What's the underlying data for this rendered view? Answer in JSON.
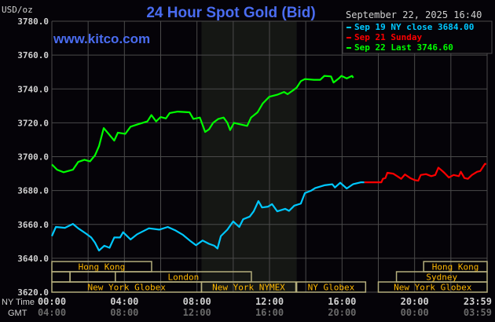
{
  "chart_data": {
    "type": "line",
    "title": "24 Hour Spot Gold (Bid)",
    "watermark": "www.kitco.com",
    "timestamp": "September 22, 2025 16:40",
    "ylabel": "USD/oz",
    "ylim": [
      3620,
      3780
    ],
    "yticks": [
      "3780.0",
      "3760.0",
      "3740.0",
      "3720.0",
      "3700.0",
      "3680.0",
      "3660.0",
      "3640.0",
      "3620.0"
    ],
    "ytick_values": [
      3780,
      3760,
      3740,
      3720,
      3700,
      3680,
      3660,
      3640,
      3620
    ],
    "xlim_hours": [
      0,
      24
    ],
    "grid": true,
    "x_row_labels": {
      "ny": "NY Time",
      "gmt": "GMT"
    },
    "xticks": [
      {
        "hour": 0,
        "ny": "00:00",
        "gmt": "04:00"
      },
      {
        "hour": 4,
        "ny": "04:00",
        "gmt": "08:00"
      },
      {
        "hour": 8,
        "ny": "08:00",
        "gmt": "12:00"
      },
      {
        "hour": 12,
        "ny": "12:00",
        "gmt": "16:00"
      },
      {
        "hour": 16,
        "ny": "16:00",
        "gmt": "20:00"
      },
      {
        "hour": 20,
        "ny": "20:00",
        "gmt": "00:00"
      },
      {
        "hour": 24,
        "ny": "23:59",
        "gmt": "03:59"
      }
    ],
    "shaded_region_hours": [
      8.25,
      13.5
    ],
    "legend_placement": "top-right",
    "series": [
      {
        "name": "Sep 19 NY close 3684.00",
        "color": "#00c8ff",
        "x": [
          0,
          0.22,
          0.72,
          1.16,
          1.45,
          1.88,
          2.17,
          2.38,
          2.6,
          2.89,
          3.18,
          3.44,
          3.76,
          3.93,
          4.34,
          4.7,
          5.35,
          5.92,
          6.39,
          6.79,
          7.23,
          7.66,
          7.95,
          8.31,
          8.67,
          8.96,
          9.13,
          9.32,
          9.68,
          10,
          10.33,
          10.55,
          10.91,
          11.13,
          11.39,
          11.59,
          11.92,
          12.14,
          12.43,
          12.86,
          13.08,
          13.37,
          13.73,
          13.95,
          14.31,
          14.52,
          15.03,
          15.46,
          15.61,
          15.9,
          16.26,
          16.62,
          17.05,
          17.23
        ],
        "y": [
          3653.1,
          3658.5,
          3658,
          3660.3,
          3657.7,
          3654.6,
          3652.3,
          3649.2,
          3644.6,
          3647.4,
          3646.2,
          3652.3,
          3652.3,
          3655.4,
          3651.1,
          3654.2,
          3657.7,
          3656.9,
          3658.5,
          3656.6,
          3653.8,
          3650,
          3647.7,
          3650.5,
          3648.5,
          3647.4,
          3645.8,
          3653.1,
          3656.9,
          3661.8,
          3658.5,
          3663.1,
          3664.6,
          3667.7,
          3673.8,
          3670,
          3670.5,
          3672,
          3667.7,
          3669.2,
          3668,
          3671.1,
          3672.3,
          3678.5,
          3680,
          3681.5,
          3683.1,
          3683.7,
          3681.8,
          3684.6,
          3681.2,
          3683.8,
          3684.9,
          3684.9
        ]
      },
      {
        "name": "Sep 21 Sunday",
        "color": "#ff0000",
        "x": [
          17.23,
          18.1,
          18.17,
          18.25,
          18.39,
          18.5,
          18.82,
          19.04,
          19.26,
          19.47,
          19.76,
          20,
          20.2,
          20.34,
          20.63,
          20.92,
          21.14,
          21.31,
          21.45,
          21.64,
          21.89,
          22.15,
          22.44,
          22.55,
          22.75,
          22.94,
          23.16,
          23.45,
          23.62,
          23.88,
          23.95
        ],
        "y": [
          3684.9,
          3684.9,
          3684.9,
          3686.9,
          3687.4,
          3690.5,
          3690,
          3688.5,
          3686.9,
          3689.5,
          3687.4,
          3686.2,
          3685.8,
          3689.2,
          3689.7,
          3688.5,
          3689.2,
          3693.5,
          3692.3,
          3690.5,
          3687.7,
          3689.2,
          3688.5,
          3691.1,
          3687.4,
          3686.9,
          3689.2,
          3691.1,
          3691.5,
          3695.8,
          3695.6
        ]
      },
      {
        "name": "Sep 22 Last 3746.60",
        "color": "#00ff00",
        "x": [
          0,
          0.29,
          0.65,
          1.16,
          1.45,
          1.8,
          2.1,
          2.38,
          2.6,
          2.86,
          3.1,
          3.44,
          3.64,
          4.05,
          4.34,
          4.77,
          5.27,
          5.49,
          5.75,
          6,
          6.29,
          6.5,
          6.94,
          7.59,
          7.8,
          8.16,
          8.45,
          8.67,
          8.89,
          9.18,
          9.47,
          9.68,
          9.83,
          10.04,
          10.33,
          10.77,
          10.98,
          11.34,
          11.63,
          11.99,
          12.43,
          12.8,
          13,
          13.3,
          13.5,
          13.73,
          13.95,
          14.45,
          14.8,
          15.03,
          15.39,
          15.53,
          15.82,
          15.97,
          16.26,
          16.55,
          16.62
        ],
        "y": [
          3695.4,
          3692.3,
          3690.8,
          3692.3,
          3696.9,
          3698.2,
          3697.2,
          3700.8,
          3706.2,
          3716.9,
          3713.8,
          3709.5,
          3714.2,
          3713.5,
          3717.7,
          3719.2,
          3720.8,
          3724.6,
          3720.8,
          3723.4,
          3722.6,
          3725.8,
          3726.6,
          3726.2,
          3722.3,
          3723.1,
          3714.6,
          3716.2,
          3720,
          3722.3,
          3723.1,
          3720,
          3715.7,
          3720,
          3719.2,
          3718.2,
          3723.1,
          3726.2,
          3731.5,
          3735.4,
          3736.6,
          3738.2,
          3736.9,
          3739.2,
          3740.8,
          3744.6,
          3745.8,
          3745.4,
          3745.4,
          3747.7,
          3747.4,
          3743.8,
          3746.2,
          3747.7,
          3746.2,
          3747.7,
          3746.6
        ]
      }
    ],
    "sessions": [
      {
        "row": 0,
        "start": 0,
        "end": 5.5,
        "label": "Hong Kong"
      },
      {
        "row": 0,
        "start": 20.5,
        "end": 24,
        "label": "Hong Kong"
      },
      {
        "row": 1,
        "start": 0,
        "end": 1,
        "label": ""
      },
      {
        "row": 1,
        "start": 1,
        "end": 3.5,
        "label": ""
      },
      {
        "row": 1,
        "start": 3.5,
        "end": 11,
        "label": "London"
      },
      {
        "row": 1,
        "start": 19,
        "end": 24,
        "label": "Sydney"
      },
      {
        "row": 2,
        "start": 0,
        "end": 8.25,
        "label": "New York Globex"
      },
      {
        "row": 2,
        "start": 8.25,
        "end": 13.45,
        "label": "New York NYMEX"
      },
      {
        "row": 2,
        "start": 13.5,
        "end": 17.3,
        "label": "NY Globex"
      },
      {
        "row": 2,
        "start": 18,
        "end": 24,
        "label": "New York Globex"
      }
    ],
    "colors": {
      "background": "#050308",
      "grid": "#4a4a4a",
      "shade": "#151714",
      "title": "#4a6cf0",
      "session_text": "#ffb800",
      "session_border": "#b4ae7c",
      "axis_text": "#d0d0d0",
      "gmt_text": "#6a6a6a"
    }
  }
}
